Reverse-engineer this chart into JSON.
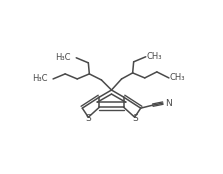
{
  "background": "#ffffff",
  "line_color": "#4a4a4a",
  "line_width": 1.1,
  "figsize": [
    2.23,
    1.74
  ],
  "dpi": 100,
  "xlim": [
    0,
    22
  ],
  "ylim": [
    0,
    17
  ]
}
